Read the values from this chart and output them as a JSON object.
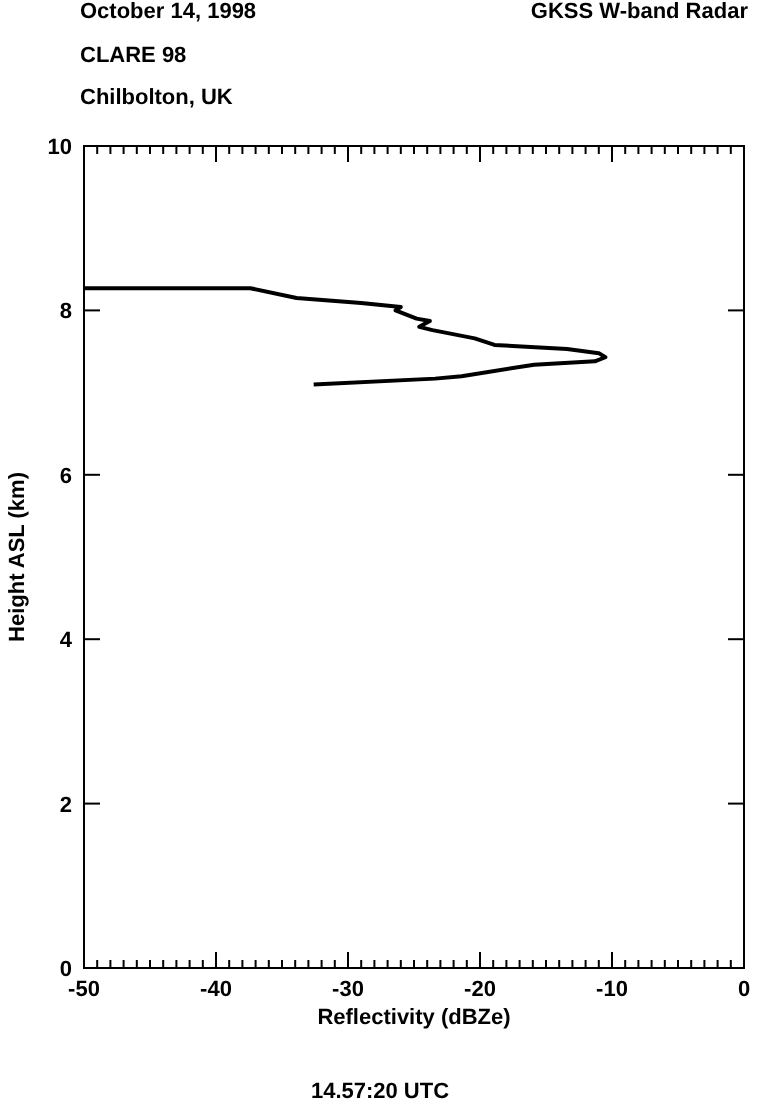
{
  "chart_data": {
    "type": "line",
    "title": "October 14, 1998",
    "subtitle": "CLARE 98",
    "xlabel": "Reflectivity (dBZe)",
    "ylabel": "Height ASL (km)",
    "annotations": [
      "Chilbolton, UK",
      "GKSS  W-band Radar",
      "14.57:20 UTC"
    ],
    "series": [
      {
        "color": "#000000",
        "x": [
          -50,
          -37.4,
          -33.9,
          -29,
          -26,
          -26.4,
          -24.8,
          -23.8,
          -24.6,
          -23.6,
          -20.4,
          -18.9,
          -13.4,
          -11,
          -10.5,
          -11.3,
          -15.9,
          -21.4,
          -23.4,
          -32.6
        ],
        "values": [
          8.27,
          8.27,
          8.15,
          8.09,
          8.04,
          8,
          7.9,
          7.87,
          7.8,
          7.76,
          7.66,
          7.58,
          7.53,
          7.48,
          7.43,
          7.38,
          7.34,
          7.2,
          7.17,
          7.1
        ]
      }
    ],
    "xlim": [
      -50,
      0
    ],
    "ylim": [
      0,
      10
    ],
    "xticks": [
      -50,
      {
        "value": -49,
        "label": null
      },
      {
        "value": -48,
        "label": null
      },
      {
        "value": -47,
        "label": null
      },
      {
        "value": -46,
        "label": null
      },
      {
        "value": -45,
        "label": null
      },
      {
        "value": -44,
        "label": null
      },
      {
        "value": -43,
        "label": null
      },
      {
        "value": -42,
        "label": null
      },
      {
        "value": -41,
        "label": null
      },
      -40,
      {
        "value": -39,
        "label": null
      },
      {
        "value": -38,
        "label": null
      },
      {
        "value": -37,
        "label": null
      },
      {
        "value": -36,
        "label": null
      },
      {
        "value": -35,
        "label": null
      },
      {
        "value": -34,
        "label": null
      },
      {
        "value": -33,
        "label": null
      },
      {
        "value": -32,
        "label": null
      },
      {
        "value": -31,
        "label": null
      },
      -30,
      {
        "value": -29,
        "label": null
      },
      {
        "value": -28,
        "label": null
      },
      {
        "value": -27,
        "label": null
      },
      {
        "value": -26,
        "label": null
      },
      {
        "value": -25,
        "label": null
      },
      {
        "value": -24,
        "label": null
      },
      {
        "value": -23,
        "label": null
      },
      {
        "value": -22,
        "label": null
      },
      {
        "value": -21,
        "label": null
      },
      -20,
      {
        "value": -19,
        "label": null
      },
      {
        "value": -18,
        "label": null
      },
      {
        "value": -17,
        "label": null
      },
      {
        "value": -16,
        "label": null
      },
      {
        "value": -15,
        "label": null
      },
      {
        "value": -14,
        "label": null
      },
      {
        "value": -13,
        "label": null
      },
      {
        "value": -12,
        "label": null
      },
      {
        "value": -11,
        "label": null
      },
      -10,
      {
        "value": -9,
        "label": null
      },
      {
        "value": -8,
        "label": null
      },
      {
        "value": -7,
        "label": null
      },
      {
        "value": -6,
        "label": null
      },
      {
        "value": -5,
        "label": null
      },
      {
        "value": -4,
        "label": null
      },
      {
        "value": -3,
        "label": null
      },
      {
        "value": -2,
        "label": null
      },
      {
        "value": -1,
        "label": null
      },
      0
    ],
    "yticks": [
      0,
      2,
      4,
      6,
      8,
      10
    ],
    "grid": false,
    "marker": "none",
    "line_style": "solid"
  }
}
